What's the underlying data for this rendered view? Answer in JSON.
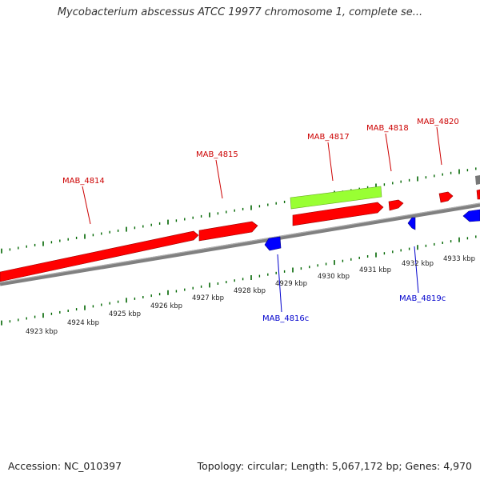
{
  "title": "Mycobacterium abscessus ATCC 19977 chromosome 1, complete se...",
  "accession": "Accession: NC_010397",
  "summary": "Topology: circular; Length: 5,067,172 bp; Genes: 4,970",
  "colors": {
    "forward_gene": "#ff0000",
    "reverse_gene": "#0000ff",
    "highlighted_gene": "#99ff33",
    "backbone": "#808080",
    "ticks": "#006600"
  },
  "scale": {
    "unit": "kbp",
    "labels": [
      "4923 kbp",
      "4924 kbp",
      "4925 kbp",
      "4926 kbp",
      "4927 kbp",
      "4928 kbp",
      "4929 kbp",
      "4930 kbp",
      "4931 kbp",
      "4932 kbp",
      "4933 kbp"
    ]
  },
  "genes": [
    {
      "name": "MAB_4814",
      "strand": "forward"
    },
    {
      "name": "MAB_4815",
      "strand": "forward"
    },
    {
      "name": "MAB_4816c",
      "strand": "reverse"
    },
    {
      "name": "MAB_4817",
      "strand": "forward",
      "highlight": true
    },
    {
      "name": "MAB_4818",
      "strand": "forward"
    },
    {
      "name": "MAB_4819c",
      "strand": "reverse"
    },
    {
      "name": "MAB_4820",
      "strand": "forward"
    }
  ]
}
